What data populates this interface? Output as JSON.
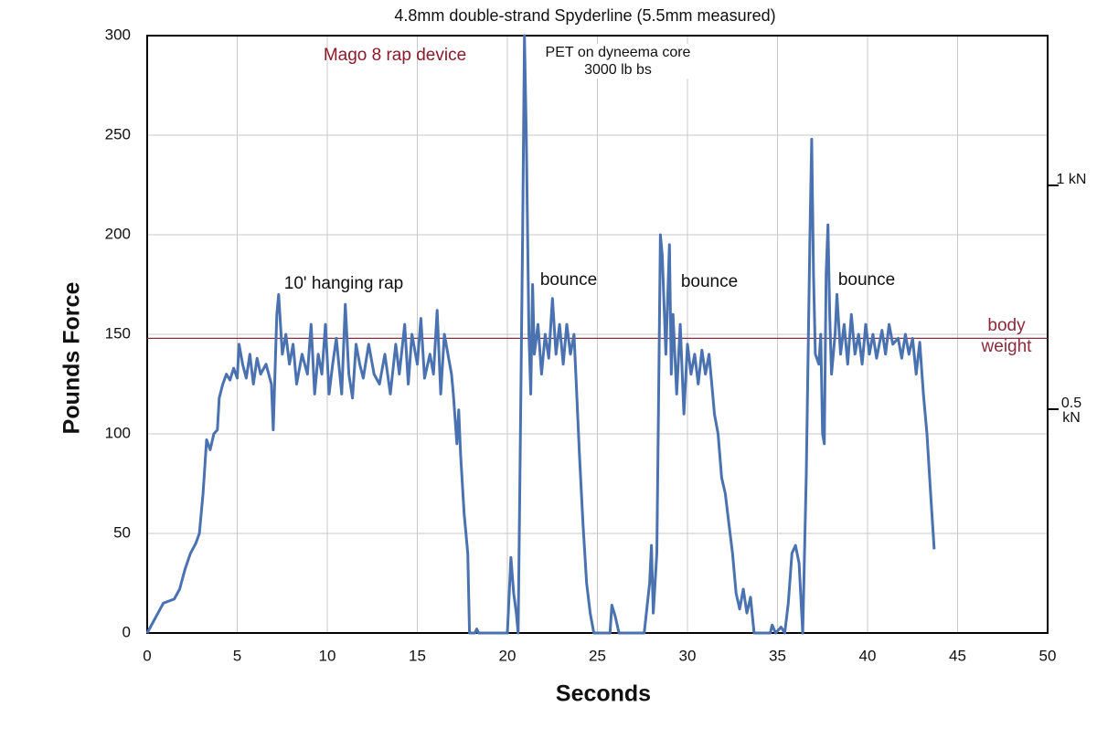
{
  "chart_data": {
    "type": "line",
    "title": "4.8mm double-strand Spyderline (5.5mm measured)",
    "x_label": "Seconds",
    "y_label": "Pounds Force",
    "xlim": [
      0,
      50
    ],
    "xticks": [
      0,
      5,
      10,
      15,
      20,
      25,
      30,
      35,
      40,
      45,
      50
    ],
    "ylim": [
      0,
      300
    ],
    "yticks": [
      0,
      50,
      100,
      150,
      200,
      250,
      300
    ],
    "y2lim": [
      0,
      1.3345
    ],
    "y2ticks": [
      {
        "value": 0.5,
        "label": "0.5 kN"
      },
      {
        "value": 1,
        "label": "1 kN"
      }
    ],
    "grid": true,
    "reference_line": {
      "value": 148,
      "label": "body weight",
      "color": "#8b2a3a"
    },
    "annotations": [
      "Mago 8 rap device",
      "PET on dyneema core\n3000 lb bs",
      "10' hanging rap",
      "bounce",
      "bounce",
      "bounce"
    ],
    "series": [
      {
        "name": "Force",
        "color": "#4a72b0",
        "x": [
          0,
          0.3,
          0.6,
          0.9,
          1.2,
          1.5,
          1.8,
          2.1,
          2.4,
          2.7,
          2.9,
          3.1,
          3.3,
          3.5,
          3.7,
          3.9,
          4.0,
          4.2,
          4.4,
          4.6,
          4.8,
          5.0,
          5.1,
          5.3,
          5.5,
          5.7,
          5.9,
          6.1,
          6.3,
          6.6,
          6.9,
          7.0,
          7.2,
          7.3,
          7.5,
          7.7,
          7.9,
          8.1,
          8.3,
          8.6,
          8.9,
          9.1,
          9.3,
          9.5,
          9.7,
          9.9,
          10.1,
          10.3,
          10.5,
          10.8,
          11.0,
          11.2,
          11.4,
          11.6,
          11.8,
          12.0,
          12.3,
          12.6,
          12.9,
          13.2,
          13.5,
          13.8,
          14.0,
          14.3,
          14.5,
          14.7,
          15.0,
          15.2,
          15.4,
          15.7,
          15.9,
          16.1,
          16.3,
          16.5,
          16.7,
          16.9,
          17.0,
          17.2,
          17.3,
          17.4,
          17.6,
          17.8,
          17.9,
          18.2,
          18.3,
          18.4,
          20.0,
          20.2,
          20.35,
          20.5,
          20.6,
          20.7,
          20.85,
          20.95,
          21.05,
          21.2,
          21.3,
          21.4,
          21.5,
          21.7,
          21.9,
          22.1,
          22.3,
          22.5,
          22.7,
          22.9,
          23.1,
          23.3,
          23.5,
          23.7,
          23.8,
          24.0,
          24.2,
          24.4,
          24.6,
          24.8,
          25.7,
          25.8,
          26.0,
          26.2,
          27.6,
          27.9,
          28.0,
          28.1,
          28.3,
          28.4,
          28.5,
          28.6,
          28.8,
          29.0,
          29.1,
          29.2,
          29.4,
          29.6,
          29.8,
          30.0,
          30.2,
          30.4,
          30.6,
          30.8,
          31.0,
          31.2,
          31.4,
          31.5,
          31.7,
          31.9,
          32.1,
          32.3,
          32.5,
          32.7,
          32.9,
          33.1,
          33.3,
          33.5,
          33.7,
          34.6,
          34.7,
          34.9,
          35.2,
          35.4,
          35.6,
          35.8,
          36.0,
          36.2,
          36.4,
          36.6,
          36.8,
          36.9,
          37.0,
          37.1,
          37.3,
          37.4,
          37.5,
          37.6,
          37.7,
          37.8,
          37.9,
          38.0,
          38.2,
          38.3,
          38.5,
          38.7,
          38.9,
          39.1,
          39.3,
          39.5,
          39.7,
          39.9,
          40.1,
          40.3,
          40.5,
          40.8,
          41.0,
          41.2,
          41.4,
          41.7,
          41.9,
          42.1,
          42.3,
          42.5,
          42.7,
          42.9,
          43.1,
          43.3,
          43.5,
          43.7
        ],
        "values": [
          0,
          5,
          10,
          15,
          16,
          17,
          22,
          32,
          40,
          45,
          50,
          70,
          97,
          92,
          100,
          102,
          118,
          125,
          130,
          127,
          133,
          128,
          145,
          135,
          128,
          140,
          125,
          138,
          130,
          135,
          125,
          102,
          160,
          170,
          140,
          150,
          135,
          145,
          125,
          140,
          130,
          155,
          120,
          140,
          130,
          155,
          120,
          135,
          148,
          120,
          165,
          130,
          118,
          145,
          135,
          128,
          145,
          130,
          125,
          140,
          120,
          145,
          130,
          155,
          125,
          150,
          135,
          158,
          128,
          140,
          130,
          162,
          120,
          150,
          140,
          130,
          120,
          95,
          112,
          90,
          60,
          40,
          0,
          0,
          2,
          0,
          0,
          38,
          20,
          10,
          0,
          80,
          200,
          300,
          250,
          150,
          120,
          175,
          140,
          155,
          130,
          150,
          138,
          168,
          140,
          155,
          135,
          155,
          140,
          150,
          130,
          90,
          55,
          25,
          10,
          0,
          0,
          14,
          8,
          0,
          0,
          25,
          44,
          10,
          40,
          120,
          200,
          190,
          140,
          195,
          130,
          160,
          120,
          155,
          110,
          145,
          130,
          140,
          125,
          142,
          130,
          140,
          120,
          110,
          100,
          78,
          70,
          55,
          40,
          20,
          12,
          22,
          10,
          18,
          0,
          0,
          4,
          0,
          3,
          0,
          15,
          40,
          44,
          35,
          0,
          80,
          200,
          248,
          180,
          140,
          135,
          150,
          100,
          95,
          180,
          205,
          160,
          130,
          150,
          170,
          140,
          155,
          135,
          160,
          140,
          150,
          135,
          155,
          140,
          150,
          138,
          152,
          140,
          155,
          145,
          148,
          138,
          150,
          140,
          148,
          130,
          146,
          120,
          100,
          70,
          42
        ]
      }
    ]
  }
}
